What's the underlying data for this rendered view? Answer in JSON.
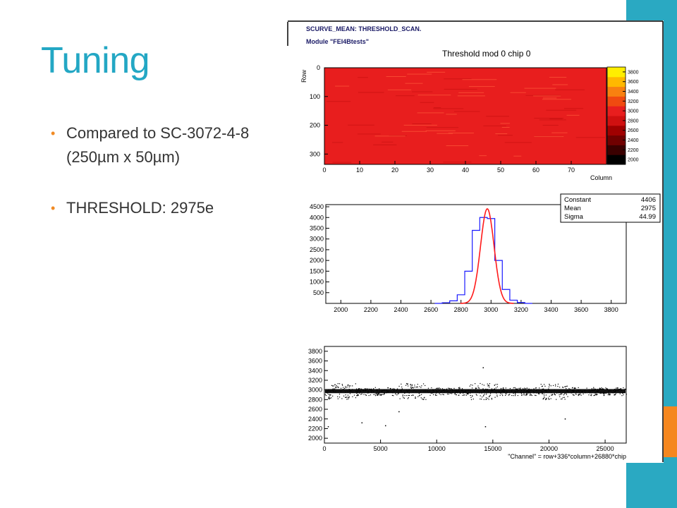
{
  "slide": {
    "title": "Tuning",
    "bullets": [
      {
        "line1": "Compared to SC-3072-4-8",
        "line2": "(250µm x 50µm)"
      },
      {
        "line1": "THRESHOLD:  2975e",
        "line2": ""
      }
    ]
  },
  "figure": {
    "header_line1": "SCURVE_MEAN: THRESHOLD_SCAN.",
    "header_line2": "Module \"FEI4Btests\""
  },
  "colors": {
    "title": "#23a7c4",
    "bullet_dot": "#f08a24",
    "side_bar": "#2aa9c2",
    "side_accent": "#f5871f",
    "histogram_line": "#1a1aff",
    "fit_line": "#ff1a1a"
  },
  "chart_data": [
    {
      "type": "heatmap",
      "title": "Threshold mod 0 chip 0",
      "xlabel": "Column",
      "ylabel": "Row",
      "xlim": [
        0,
        80
      ],
      "ylim": [
        0,
        336
      ],
      "x_ticks": [
        0,
        10,
        20,
        30,
        40,
        50,
        60,
        70
      ],
      "y_ticks": [
        0,
        100,
        200,
        300
      ],
      "colorbar_ticks": [
        2000,
        2200,
        2400,
        2600,
        2800,
        3000,
        3200,
        3400,
        3600,
        3800
      ],
      "value_typical": 2975
    },
    {
      "type": "bar",
      "title": "",
      "xlabel": "",
      "ylabel": "",
      "xlim": [
        1900,
        3900
      ],
      "ylim": [
        0,
        4600
      ],
      "x_ticks": [
        2000,
        2200,
        2400,
        2600,
        2800,
        3000,
        3200,
        3400,
        3600,
        3800
      ],
      "y_ticks": [
        500,
        1000,
        1500,
        2000,
        2500,
        3000,
        3500,
        4000,
        4500
      ],
      "bins_x": [
        2650,
        2700,
        2750,
        2800,
        2850,
        2900,
        2950,
        3000,
        3050,
        3100,
        3150,
        3200,
        3250
      ],
      "bins_values": [
        0,
        30,
        120,
        400,
        1500,
        3400,
        4000,
        3950,
        2000,
        650,
        150,
        40,
        0
      ],
      "fit": {
        "type": "gaussian",
        "constant": 4406,
        "mean": 2975,
        "sigma": 44.99
      },
      "stats": [
        {
          "label": "Constant",
          "value": "4406"
        },
        {
          "label": "Mean",
          "value": "2975"
        },
        {
          "label": "Sigma",
          "value": "44.99"
        }
      ]
    },
    {
      "type": "scatter",
      "title": "",
      "xlabel": "\"Channel\" = row+336*column+26880*chip",
      "ylabel": "",
      "xlim": [
        0,
        26880
      ],
      "ylim": [
        1900,
        3900
      ],
      "x_ticks": [
        0,
        5000,
        10000,
        15000,
        20000,
        25000
      ],
      "y_ticks": [
        2000,
        2200,
        2400,
        2600,
        2800,
        3000,
        3200,
        3400,
        3600,
        3800
      ],
      "band_center": 2975,
      "band_halfwidth": 70,
      "outliers": [
        {
          "x": 3300,
          "y": 2330
        },
        {
          "x": 5400,
          "y": 2270
        },
        {
          "x": 14300,
          "y": 2250
        },
        {
          "x": 21400,
          "y": 2410
        },
        {
          "x": 6600,
          "y": 2560
        },
        {
          "x": 14100,
          "y": 3470
        },
        {
          "x": 300,
          "y": 2250
        }
      ]
    }
  ]
}
